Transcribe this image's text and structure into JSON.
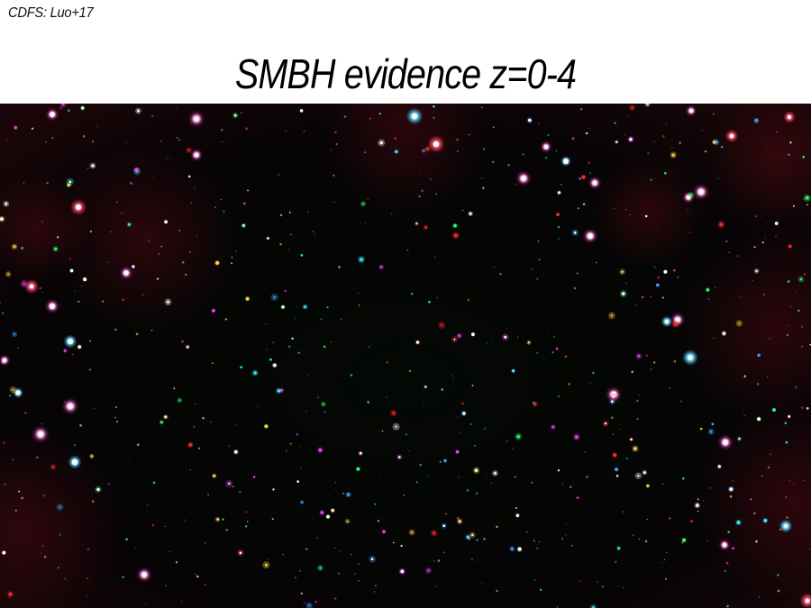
{
  "slide": {
    "credit": "CDFS: Luo+17",
    "title": "SMBH evidence z=0-4"
  },
  "image": {
    "subject": "x-ray deep field",
    "colors": {
      "background": "#020403",
      "soft_band": "#ff2a2a",
      "medium_band": "#2aff6a",
      "hard_band": "#3aa0ff",
      "broad": "#ffffff"
    }
  }
}
